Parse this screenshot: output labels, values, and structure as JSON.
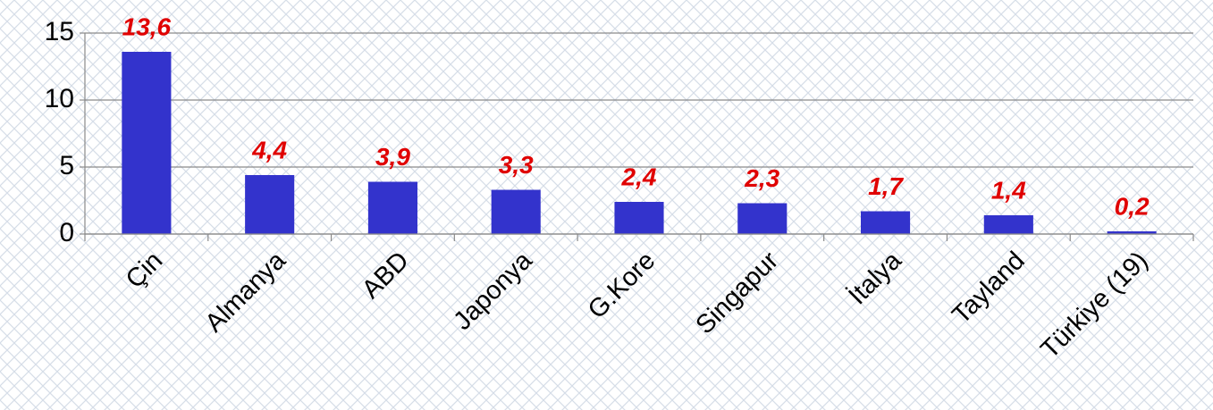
{
  "chart_data": {
    "type": "bar",
    "categories": [
      "Çin",
      "Almanya",
      "ABD",
      "Japonya",
      "G.Kore",
      "Singapur",
      "İtalya",
      "Tayland",
      "Türkiye (19)"
    ],
    "values": [
      13.6,
      4.4,
      3.9,
      3.3,
      2.4,
      2.3,
      1.7,
      1.4,
      0.2
    ],
    "value_labels": [
      "13,6",
      "4,4",
      "3,9",
      "3,3",
      "2,4",
      "2,3",
      "1,7",
      "1,4",
      "0,2"
    ],
    "color": "#3333cc",
    "label_color": "#e00000",
    "ylim": [
      0,
      15
    ],
    "yticks": [
      0,
      5,
      10,
      15
    ],
    "grid": true
  }
}
